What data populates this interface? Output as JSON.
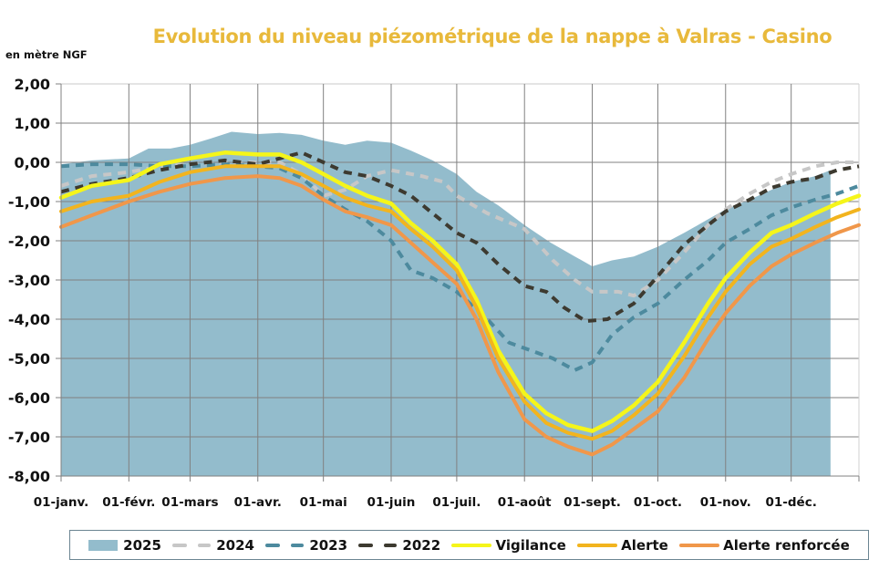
{
  "chart_data": {
    "type": "line",
    "title": "Evolution du niveau piézométrique de la nappe à Valras - Casino",
    "ylabel": "en mètre NGF",
    "xlabel": "",
    "ylim": [
      -8,
      2
    ],
    "yticks": [
      "2,00",
      "1,00",
      "0,00",
      "-1,00",
      "-2,00",
      "-3,00",
      "-4,00",
      "-5,00",
      "-6,00",
      "-7,00",
      "-8,00"
    ],
    "ytick_values": [
      2,
      1,
      0,
      -1,
      -2,
      -3,
      -4,
      -5,
      -6,
      -7,
      -8
    ],
    "xlim_days": [
      0,
      365
    ],
    "xticks": [
      "01-janv.",
      "01-févr.",
      "01-mars",
      "01-avr.",
      "01-mai",
      "01-juin",
      "01-juil.",
      "01-août",
      "01-sept.",
      "01-oct.",
      "01-nov.",
      "01-déc."
    ],
    "xtick_days": [
      0,
      31,
      59,
      90,
      120,
      151,
      181,
      212,
      243,
      273,
      304,
      334
    ],
    "grid": true,
    "legend_position": "bottom",
    "series": [
      {
        "name": "2025",
        "kind": "area",
        "color": "#93bccc",
        "x": [
          0,
          14,
          31,
          40,
          50,
          59,
          68,
          78,
          90,
          100,
          110,
          120,
          130,
          140,
          151,
          160,
          170,
          181,
          190,
          200,
          212,
          224,
          235,
          243,
          252,
          262,
          273,
          285,
          296,
          304,
          315,
          325,
          334,
          345,
          352
        ],
        "y": [
          -0.05,
          0.05,
          0.1,
          0.35,
          0.35,
          0.45,
          0.6,
          0.78,
          0.72,
          0.75,
          0.7,
          0.55,
          0.45,
          0.55,
          0.5,
          0.3,
          0.05,
          -0.3,
          -0.75,
          -1.1,
          -1.6,
          -2.05,
          -2.4,
          -2.65,
          -2.5,
          -2.4,
          -2.15,
          -1.8,
          -1.45,
          -1.2,
          -0.95,
          -0.7,
          -0.5,
          -0.35,
          -0.2
        ]
      },
      {
        "name": "2024",
        "kind": "dashed",
        "color": "#c7c7c7",
        "x": [
          0,
          14,
          31,
          45,
          59,
          75,
          90,
          100,
          110,
          120,
          130,
          140,
          151,
          165,
          175,
          181,
          195,
          212,
          225,
          235,
          243,
          255,
          262,
          273,
          285,
          296,
          304,
          315,
          325,
          334,
          345,
          355,
          365
        ],
        "y": [
          -0.6,
          -0.35,
          -0.25,
          -0.1,
          -0.05,
          0.0,
          0.0,
          0.0,
          -0.3,
          -0.85,
          -0.7,
          -0.35,
          -0.2,
          -0.35,
          -0.5,
          -0.85,
          -1.3,
          -1.7,
          -2.5,
          -3.0,
          -3.3,
          -3.3,
          -3.4,
          -3.0,
          -2.3,
          -1.6,
          -1.2,
          -0.8,
          -0.5,
          -0.3,
          -0.1,
          0.0,
          0.0
        ]
      },
      {
        "name": "2023",
        "kind": "dashed",
        "color": "#4d8a9e",
        "x": [
          0,
          14,
          31,
          45,
          59,
          75,
          90,
          100,
          110,
          120,
          130,
          140,
          151,
          160,
          170,
          181,
          195,
          205,
          215,
          225,
          235,
          243,
          252,
          262,
          273,
          285,
          296,
          304,
          315,
          325,
          334,
          345,
          355,
          365
        ],
        "y": [
          -0.1,
          -0.05,
          -0.05,
          -0.1,
          -0.1,
          -0.05,
          -0.1,
          -0.15,
          -0.4,
          -0.85,
          -1.2,
          -1.5,
          -2.0,
          -2.75,
          -2.95,
          -3.3,
          -4.0,
          -4.6,
          -4.8,
          -5.0,
          -5.3,
          -5.1,
          -4.4,
          -3.95,
          -3.6,
          -3.0,
          -2.5,
          -2.05,
          -1.7,
          -1.35,
          -1.15,
          -0.95,
          -0.8,
          -0.6
        ]
      },
      {
        "name": "2022",
        "kind": "dashed",
        "color": "#3d3a30",
        "x": [
          0,
          14,
          31,
          45,
          59,
          75,
          90,
          100,
          110,
          120,
          130,
          140,
          151,
          160,
          170,
          181,
          190,
          200,
          212,
          222,
          230,
          240,
          250,
          262,
          273,
          285,
          296,
          304,
          315,
          325,
          334,
          345,
          355,
          365
        ],
        "y": [
          -0.75,
          -0.55,
          -0.4,
          -0.2,
          -0.05,
          0.05,
          -0.05,
          0.1,
          0.25,
          0.0,
          -0.25,
          -0.35,
          -0.6,
          -0.85,
          -1.3,
          -1.8,
          -2.05,
          -2.6,
          -3.15,
          -3.3,
          -3.7,
          -4.05,
          -4.0,
          -3.6,
          -2.9,
          -2.1,
          -1.6,
          -1.25,
          -0.95,
          -0.65,
          -0.5,
          -0.4,
          -0.2,
          -0.1
        ]
      },
      {
        "name": "Vigilance",
        "kind": "line",
        "color": "#f5f51a",
        "x": [
          0,
          14,
          31,
          45,
          59,
          75,
          90,
          100,
          110,
          120,
          130,
          140,
          151,
          160,
          170,
          181,
          190,
          200,
          212,
          222,
          232,
          243,
          252,
          262,
          273,
          285,
          296,
          304,
          315,
          325,
          334,
          345,
          355,
          365
        ],
        "y": [
          -0.9,
          -0.6,
          -0.45,
          -0.05,
          0.1,
          0.25,
          0.2,
          0.2,
          0.0,
          -0.3,
          -0.6,
          -0.85,
          -1.05,
          -1.55,
          -2.0,
          -2.6,
          -3.5,
          -4.8,
          -5.9,
          -6.4,
          -6.7,
          -6.85,
          -6.6,
          -6.2,
          -5.6,
          -4.6,
          -3.6,
          -2.95,
          -2.3,
          -1.8,
          -1.6,
          -1.3,
          -1.05,
          -0.85
        ]
      },
      {
        "name": "Alerte",
        "kind": "line",
        "color": "#f2b41e",
        "x": [
          0,
          14,
          31,
          45,
          59,
          75,
          90,
          100,
          110,
          120,
          130,
          140,
          151,
          160,
          170,
          181,
          190,
          200,
          212,
          222,
          232,
          243,
          252,
          262,
          273,
          285,
          296,
          304,
          315,
          325,
          334,
          345,
          355,
          365
        ],
        "y": [
          -1.25,
          -1.0,
          -0.85,
          -0.5,
          -0.25,
          -0.1,
          -0.1,
          -0.1,
          -0.3,
          -0.6,
          -0.9,
          -1.1,
          -1.25,
          -1.7,
          -2.15,
          -2.75,
          -3.7,
          -5.0,
          -6.1,
          -6.65,
          -6.9,
          -7.05,
          -6.85,
          -6.45,
          -5.9,
          -4.95,
          -3.95,
          -3.3,
          -2.6,
          -2.15,
          -1.95,
          -1.65,
          -1.4,
          -1.2
        ]
      },
      {
        "name": "Alerte renforcée",
        "kind": "line",
        "color": "#f0974a",
        "x": [
          0,
          14,
          31,
          45,
          59,
          75,
          90,
          100,
          110,
          120,
          130,
          140,
          151,
          160,
          170,
          181,
          190,
          200,
          212,
          222,
          232,
          243,
          252,
          262,
          273,
          285,
          296,
          304,
          315,
          325,
          334,
          345,
          355,
          365
        ],
        "y": [
          -1.65,
          -1.35,
          -1.0,
          -0.75,
          -0.55,
          -0.4,
          -0.35,
          -0.4,
          -0.6,
          -0.95,
          -1.25,
          -1.4,
          -1.6,
          -2.05,
          -2.55,
          -3.1,
          -4.0,
          -5.35,
          -6.55,
          -7.0,
          -7.25,
          -7.45,
          -7.2,
          -6.8,
          -6.35,
          -5.5,
          -4.5,
          -3.85,
          -3.15,
          -2.65,
          -2.35,
          -2.05,
          -1.8,
          -1.6
        ]
      }
    ]
  },
  "legend": {
    "items": [
      {
        "label": "2025",
        "kind": "area",
        "color": "#93bccc"
      },
      {
        "label": "2024",
        "kind": "dashed",
        "color": "#c7c7c7"
      },
      {
        "label": "2023",
        "kind": "dashed",
        "color": "#4d8a9e"
      },
      {
        "label": "2022",
        "kind": "dashed",
        "color": "#3d3a30"
      },
      {
        "label": "Vigilance",
        "kind": "line",
        "color": "#f5f51a"
      },
      {
        "label": "Alerte",
        "kind": "line",
        "color": "#f2b41e"
      },
      {
        "label": "Alerte renforcée",
        "kind": "line",
        "color": "#f0974a"
      }
    ]
  },
  "colors": {
    "title": "#e8b93b",
    "grid": "#808080"
  }
}
